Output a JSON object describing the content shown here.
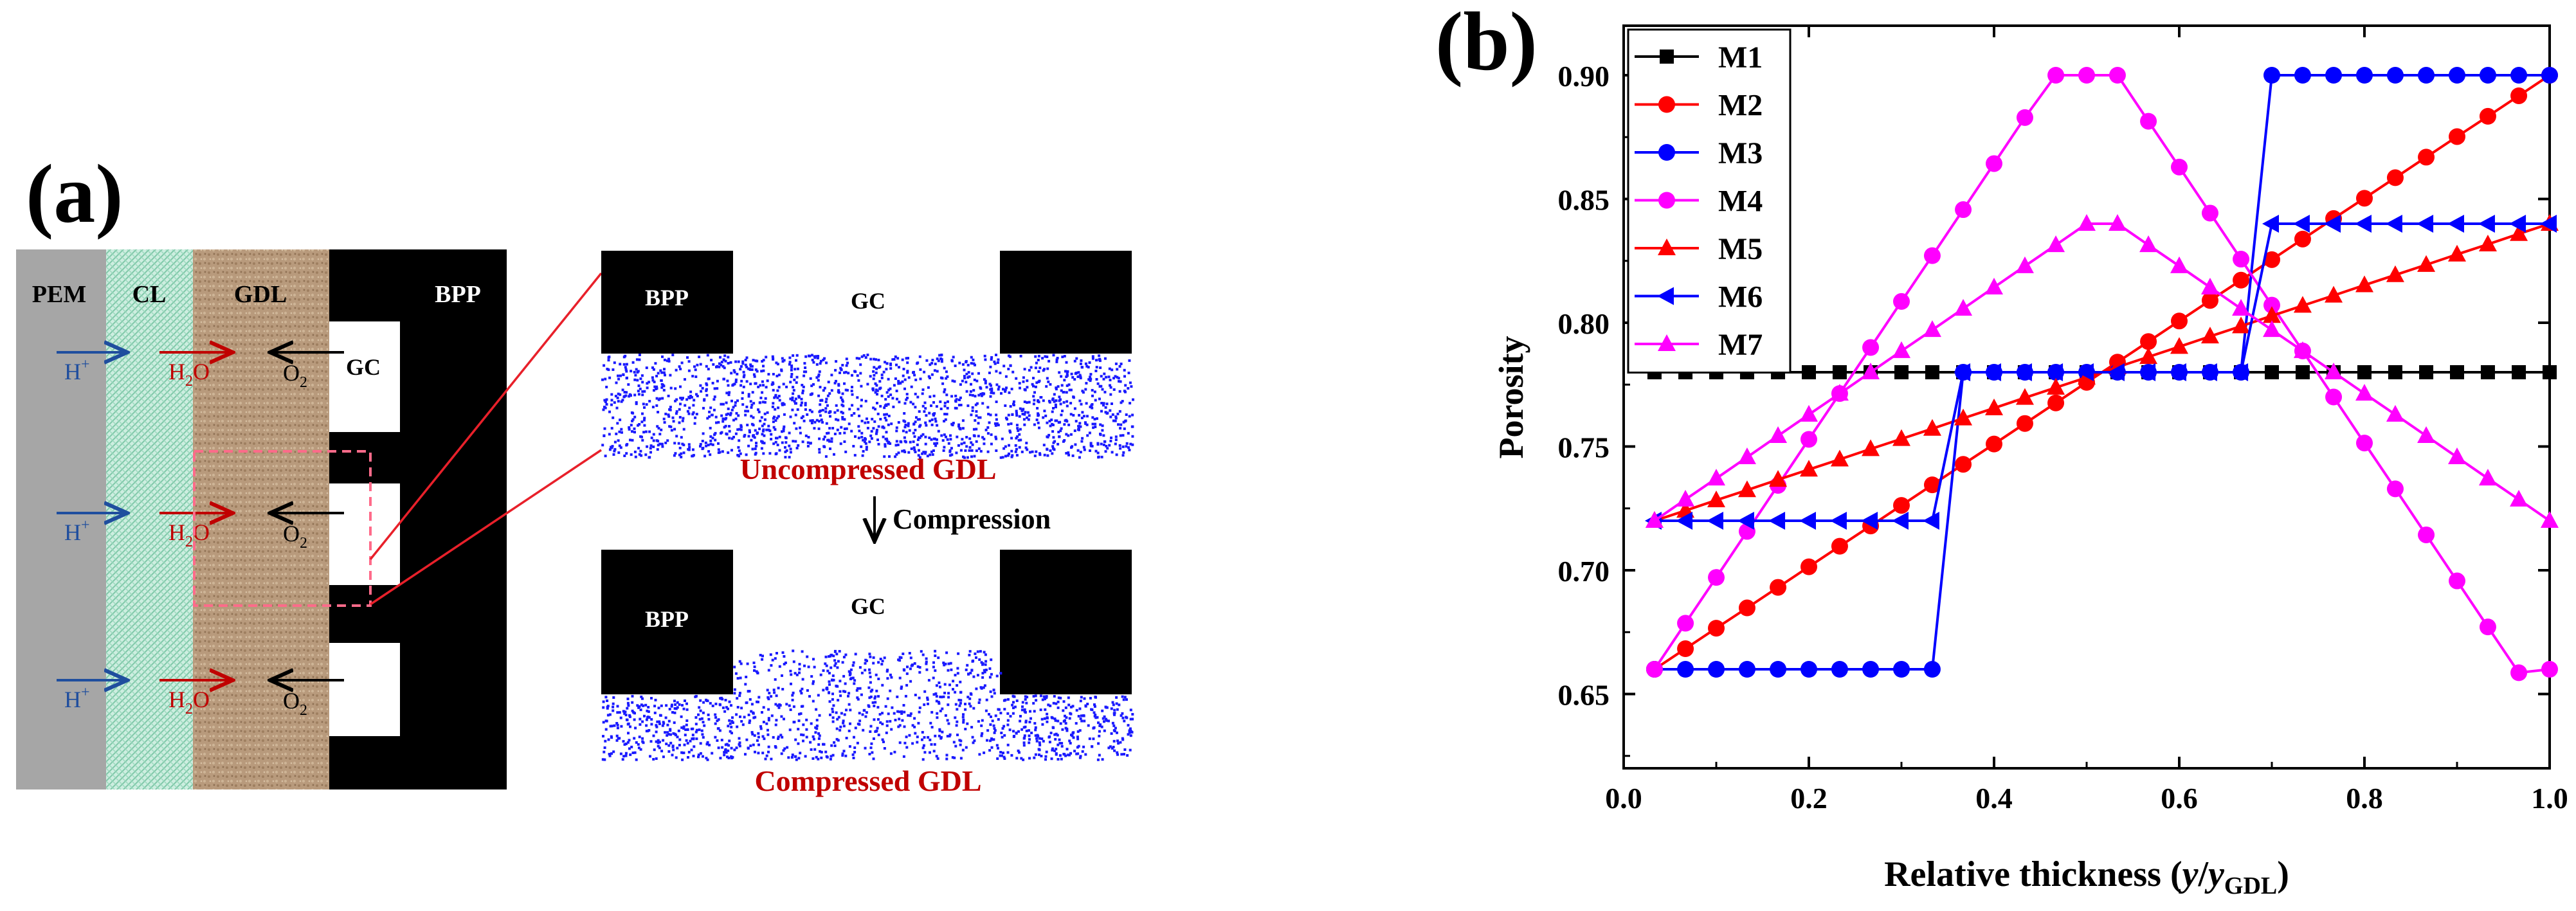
{
  "panel_a": {
    "label": "(a)",
    "layers": {
      "pem": "PEM",
      "cl": "CL",
      "gdl": "GDL",
      "bpp": "BPP"
    },
    "channel_label": "GC",
    "species": {
      "proton": "H",
      "proton_sup": "+",
      "water_h": "H",
      "water_sub": "2",
      "water_o": "O",
      "oxygen": "O",
      "oxygen_sub": "2"
    },
    "zoom_top": {
      "bpp": "BPP",
      "gc": "GC",
      "caption": "Uncompressed  GDL"
    },
    "compression": "Compression",
    "zoom_bottom": {
      "bpp": "BPP",
      "gc": "GC",
      "caption": "Compressed  GDL"
    },
    "colors": {
      "pem": "#a6a6a6",
      "cl": "#bfe8d8",
      "gdl": "#b89a7c",
      "bpp": "#000000",
      "proton": "#1f4e9e",
      "water": "#c00000",
      "dots": "#1a1aff",
      "caption": "#c00000",
      "zoom_line": "#e8202a"
    }
  },
  "chart_data": {
    "type": "line",
    "panel_label": "(b)",
    "xlabel": "Relative thickness (y/y",
    "xlabel_parts": {
      "main": "Relative thickness (",
      "italic": "y",
      "slash": "/",
      "italic2": "y",
      "sub": "GDL",
      "close": ")"
    },
    "ylabel": "Porosity",
    "xlim": [
      0.0,
      1.0
    ],
    "ylim": [
      0.62,
      0.92
    ],
    "xticks": [
      "0.0",
      "0.2",
      "0.4",
      "0.6",
      "0.8",
      "1.0"
    ],
    "yticks": [
      "0.65",
      "0.70",
      "0.75",
      "0.80",
      "0.85",
      "0.90"
    ],
    "legend_position": "top-left",
    "series": [
      {
        "name": "M1",
        "color": "#000000",
        "marker": "square",
        "x": [
          0.0333,
          0.0667,
          0.1,
          0.1333,
          0.1667,
          0.2,
          0.2333,
          0.2667,
          0.3,
          0.3333,
          0.3667,
          0.4,
          0.4333,
          0.4667,
          0.5,
          0.5333,
          0.5667,
          0.6,
          0.6333,
          0.6667,
          0.7,
          0.7333,
          0.7667,
          0.8,
          0.8333,
          0.8667,
          0.9,
          0.9333,
          0.9667,
          1.0
        ],
        "y": [
          0.78,
          0.78,
          0.78,
          0.78,
          0.78,
          0.78,
          0.78,
          0.78,
          0.78,
          0.78,
          0.78,
          0.78,
          0.78,
          0.78,
          0.78,
          0.78,
          0.78,
          0.78,
          0.78,
          0.78,
          0.78,
          0.78,
          0.78,
          0.78,
          0.78,
          0.78,
          0.78,
          0.78,
          0.78,
          0.78
        ]
      },
      {
        "name": "M2",
        "color": "#ff0000",
        "marker": "circle",
        "x": [
          0.0333,
          0.0667,
          0.1,
          0.1333,
          0.1667,
          0.2,
          0.2333,
          0.2667,
          0.3,
          0.3333,
          0.3667,
          0.4,
          0.4333,
          0.4667,
          0.5,
          0.5333,
          0.5667,
          0.6,
          0.6333,
          0.6667,
          0.7,
          0.7333,
          0.7667,
          0.8,
          0.8333,
          0.8667,
          0.9,
          0.9333,
          0.9667,
          1.0
        ],
        "y": [
          0.66,
          0.6683,
          0.6766,
          0.6848,
          0.6931,
          0.7014,
          0.7097,
          0.7179,
          0.7262,
          0.7345,
          0.7428,
          0.751,
          0.7593,
          0.7676,
          0.7759,
          0.7841,
          0.7924,
          0.8007,
          0.809,
          0.8172,
          0.8255,
          0.8338,
          0.8421,
          0.8503,
          0.8586,
          0.8669,
          0.8752,
          0.8834,
          0.8917,
          0.9
        ]
      },
      {
        "name": "M3",
        "color": "#0000ff",
        "marker": "circle",
        "x": [
          0.0333,
          0.0667,
          0.1,
          0.1333,
          0.1667,
          0.2,
          0.2333,
          0.2667,
          0.3,
          0.3333,
          0.3667,
          0.4,
          0.4333,
          0.4667,
          0.5,
          0.5333,
          0.5667,
          0.6,
          0.6333,
          0.6667,
          0.7,
          0.7333,
          0.7667,
          0.8,
          0.8333,
          0.8667,
          0.9,
          0.9333,
          0.9667,
          1.0
        ],
        "y": [
          0.66,
          0.66,
          0.66,
          0.66,
          0.66,
          0.66,
          0.66,
          0.66,
          0.66,
          0.66,
          0.78,
          0.78,
          0.78,
          0.78,
          0.78,
          0.78,
          0.78,
          0.78,
          0.78,
          0.78,
          0.9,
          0.9,
          0.9,
          0.9,
          0.9,
          0.9,
          0.9,
          0.9,
          0.9,
          0.9
        ]
      },
      {
        "name": "M4",
        "color": "#ff00ff",
        "marker": "circle",
        "x": [
          0.0333,
          0.0667,
          0.1,
          0.1333,
          0.1667,
          0.2,
          0.2333,
          0.2667,
          0.3,
          0.3333,
          0.3667,
          0.4,
          0.4333,
          0.4667,
          0.5,
          0.5333,
          0.5667,
          0.6,
          0.6333,
          0.6667,
          0.7,
          0.7333,
          0.7667,
          0.8,
          0.8333,
          0.8667,
          0.9,
          0.9333,
          0.9667,
          1.0
        ],
        "y": [
          0.66,
          0.6786,
          0.6971,
          0.7157,
          0.7343,
          0.7529,
          0.7714,
          0.79,
          0.8086,
          0.8271,
          0.8457,
          0.8643,
          0.8829,
          0.9,
          0.9,
          0.9,
          0.8814,
          0.8629,
          0.8443,
          0.8257,
          0.8071,
          0.7886,
          0.77,
          0.7514,
          0.7329,
          0.7143,
          0.6957,
          0.6771,
          0.6586,
          0.66
        ]
      },
      {
        "name": "M5",
        "color": "#ff0000",
        "marker": "triangle-up",
        "x": [
          0.0333,
          0.0667,
          0.1,
          0.1333,
          0.1667,
          0.2,
          0.2333,
          0.2667,
          0.3,
          0.3333,
          0.3667,
          0.4,
          0.4333,
          0.4667,
          0.5,
          0.5333,
          0.5667,
          0.6,
          0.6333,
          0.6667,
          0.7,
          0.7333,
          0.7667,
          0.8,
          0.8333,
          0.8667,
          0.9,
          0.9333,
          0.9667,
          1.0
        ],
        "y": [
          0.72,
          0.7241,
          0.7283,
          0.7324,
          0.7366,
          0.7407,
          0.7448,
          0.749,
          0.7531,
          0.7572,
          0.7614,
          0.7655,
          0.7697,
          0.7738,
          0.7779,
          0.7821,
          0.7862,
          0.7903,
          0.7945,
          0.7986,
          0.8028,
          0.8069,
          0.811,
          0.8152,
          0.8193,
          0.8234,
          0.8276,
          0.8317,
          0.8359,
          0.84
        ]
      },
      {
        "name": "M6",
        "color": "#0000ff",
        "marker": "triangle-left",
        "x": [
          0.0333,
          0.0667,
          0.1,
          0.1333,
          0.1667,
          0.2,
          0.2333,
          0.2667,
          0.3,
          0.3333,
          0.3667,
          0.4,
          0.4333,
          0.4667,
          0.5,
          0.5333,
          0.5667,
          0.6,
          0.6333,
          0.6667,
          0.7,
          0.7333,
          0.7667,
          0.8,
          0.8333,
          0.8667,
          0.9,
          0.9333,
          0.9667,
          1.0
        ],
        "y": [
          0.72,
          0.72,
          0.72,
          0.72,
          0.72,
          0.72,
          0.72,
          0.72,
          0.72,
          0.72,
          0.78,
          0.78,
          0.78,
          0.78,
          0.78,
          0.78,
          0.78,
          0.78,
          0.78,
          0.78,
          0.84,
          0.84,
          0.84,
          0.84,
          0.84,
          0.84,
          0.84,
          0.84,
          0.84,
          0.84
        ]
      },
      {
        "name": "M7",
        "color": "#ff00ff",
        "marker": "triangle-up",
        "x": [
          0.0333,
          0.0667,
          0.1,
          0.1333,
          0.1667,
          0.2,
          0.2333,
          0.2667,
          0.3,
          0.3333,
          0.3667,
          0.4,
          0.4333,
          0.4667,
          0.5,
          0.5333,
          0.5667,
          0.6,
          0.6333,
          0.6667,
          0.7,
          0.7333,
          0.7667,
          0.8,
          0.8333,
          0.8667,
          0.9,
          0.9333,
          0.9667,
          1.0
        ],
        "y": [
          0.72,
          0.7286,
          0.7371,
          0.7457,
          0.7543,
          0.7629,
          0.7714,
          0.78,
          0.7886,
          0.7971,
          0.8057,
          0.8143,
          0.8229,
          0.8314,
          0.84,
          0.84,
          0.8314,
          0.8229,
          0.8143,
          0.8057,
          0.7971,
          0.7886,
          0.78,
          0.7714,
          0.7629,
          0.7543,
          0.7457,
          0.7371,
          0.7286,
          0.72
        ]
      }
    ]
  }
}
